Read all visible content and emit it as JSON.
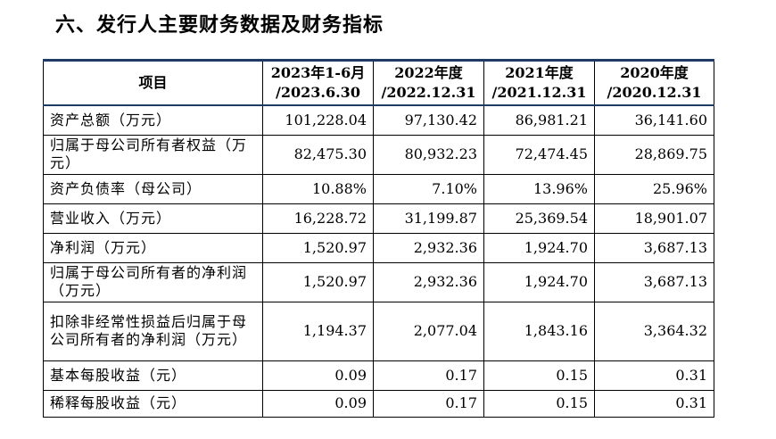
{
  "heading": "六、发行人主要财务数据及财务指标",
  "table": {
    "headers": [
      {
        "line1": "项目",
        "line2": ""
      },
      {
        "line1": "2023年1-6月",
        "line2": "/2023.6.30"
      },
      {
        "line1": "2022年度",
        "line2": "/2022.12.31"
      },
      {
        "line1": "2021年度",
        "line2": "/2021.12.31"
      },
      {
        "line1": "2020年度",
        "line2": "/2020.12.31"
      }
    ],
    "rows": [
      {
        "label": "资产总额（万元）",
        "values": [
          "101,228.04",
          "97,130.42",
          "86,981.21",
          "36,141.60"
        ]
      },
      {
        "label": "归属于母公司所有者权益（万元）",
        "values": [
          "82,475.30",
          "80,932.23",
          "72,474.45",
          "28,869.75"
        ]
      },
      {
        "label": "资产负债率（母公司）",
        "values": [
          "10.88%",
          "7.10%",
          "13.96%",
          "25.96%"
        ]
      },
      {
        "label": "营业收入（万元）",
        "values": [
          "16,228.72",
          "31,199.87",
          "25,369.54",
          "18,901.07"
        ]
      },
      {
        "label": "净利润（万元）",
        "values": [
          "1,520.97",
          "2,932.36",
          "1,924.70",
          "3,687.13"
        ]
      },
      {
        "label": "归属于母公司所有者的净利润（万元）",
        "values": [
          "1,520.97",
          "2,932.36",
          "1,924.70",
          "3,687.13"
        ]
      },
      {
        "label": "扣除非经常性损益后归属于母公司所有者的净利润（万元）",
        "values": [
          "1,194.37",
          "2,077.04",
          "1,843.16",
          "3,364.32"
        ]
      },
      {
        "label": "基本每股收益（元）",
        "values": [
          "0.09",
          "0.17",
          "0.15",
          "0.31"
        ]
      },
      {
        "label": "稀释每股收益（元）",
        "values": [
          "0.09",
          "0.17",
          "0.15",
          "0.31"
        ]
      }
    ]
  }
}
